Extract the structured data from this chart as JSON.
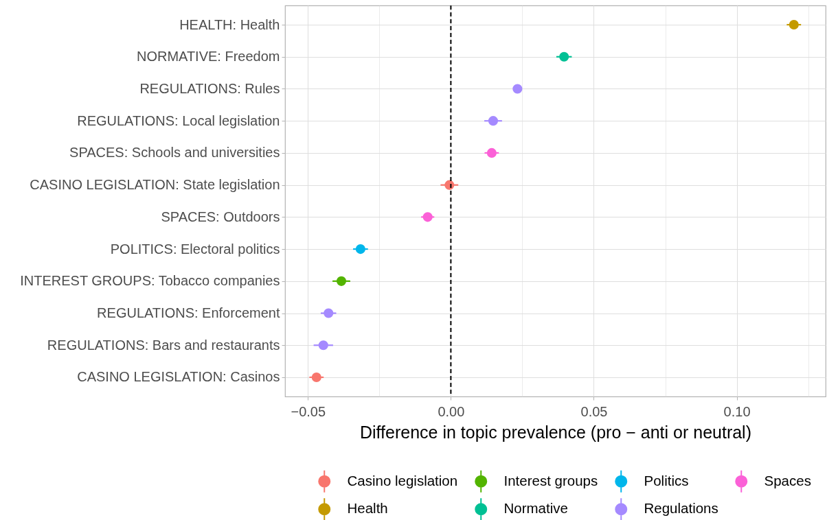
{
  "chart_data": {
    "type": "scatter",
    "orientation": "horizontal",
    "xlabel": "Difference in topic prevalence (pro − anti or neutral)",
    "categories": [
      "HEALTH: Health",
      "NORMATIVE: Freedom",
      "REGULATIONS: Rules",
      "REGULATIONS: Local legislation",
      "SPACES: Schools and universities",
      "CASINO LEGISLATION: State legislation",
      "SPACES: Outdoors",
      "POLITICS: Electoral politics",
      "INTEREST GROUPS: Tobacco companies",
      "REGULATIONS: Enforcement",
      "REGULATIONS: Bars and restaurants",
      "CASINO LEGISLATION: Casinos"
    ],
    "xlim": [
      -0.058,
      0.1311
    ],
    "xticks": [
      {
        "value": -0.05,
        "label": "−0.05"
      },
      {
        "value": -0.025,
        "label": null
      },
      {
        "value": 0,
        "label": "0.00"
      },
      {
        "value": 0.025,
        "label": null
      },
      {
        "value": 0.05,
        "label": "0.05"
      },
      {
        "value": 0.075,
        "label": null
      },
      {
        "value": 0.1,
        "label": "0.10"
      },
      {
        "value": 0.125,
        "label": null
      }
    ],
    "grid": true,
    "legend": "bottom",
    "marker": "circle",
    "ref_lines": [
      {
        "axis": "x",
        "value": 0,
        "color": "#000000",
        "line_style": "dashed"
      }
    ],
    "series": [
      {
        "name": "Casino legislation",
        "color": "#f8766d",
        "values": [
          null,
          null,
          null,
          null,
          null,
          -0.0005,
          null,
          null,
          null,
          null,
          null,
          -0.047
        ],
        "errors": [
          null,
          null,
          null,
          null,
          null,
          0.0031,
          null,
          null,
          null,
          null,
          null,
          0.0025
        ]
      },
      {
        "name": "Interest groups",
        "color": "#53b400",
        "values": [
          null,
          null,
          null,
          null,
          null,
          null,
          null,
          null,
          -0.0383,
          null,
          null,
          null
        ],
        "errors": [
          null,
          null,
          null,
          null,
          null,
          null,
          null,
          null,
          0.0031,
          null,
          null,
          null
        ]
      },
      {
        "name": "Politics",
        "color": "#00b6eb",
        "values": [
          null,
          null,
          null,
          null,
          null,
          null,
          null,
          -0.0316,
          null,
          null,
          null,
          null
        ],
        "errors": [
          null,
          null,
          null,
          null,
          null,
          null,
          null,
          0.0026,
          null,
          null,
          null,
          null
        ]
      },
      {
        "name": "Spaces",
        "color": "#fb61d7",
        "values": [
          null,
          null,
          null,
          null,
          0.0143,
          null,
          -0.0081,
          null,
          null,
          null,
          null,
          null
        ],
        "errors": [
          null,
          null,
          null,
          null,
          0.0025,
          null,
          0.0023,
          null,
          null,
          null,
          null,
          null
        ]
      },
      {
        "name": "Health",
        "color": "#c49a00",
        "values": [
          0.12,
          null,
          null,
          null,
          null,
          null,
          null,
          null,
          null,
          null,
          null,
          null
        ],
        "errors": [
          0.0025,
          null,
          null,
          null,
          null,
          null,
          null,
          null,
          null,
          null,
          null,
          null
        ]
      },
      {
        "name": "Normative",
        "color": "#00c094",
        "values": [
          null,
          0.0396,
          null,
          null,
          null,
          null,
          null,
          null,
          null,
          null,
          null,
          null
        ],
        "errors": [
          null,
          0.0027,
          null,
          null,
          null,
          null,
          null,
          null,
          null,
          null,
          null,
          null
        ]
      },
      {
        "name": "Regulations",
        "color": "#a58aff",
        "values": [
          null,
          null,
          0.0233,
          0.0148,
          null,
          null,
          null,
          null,
          null,
          -0.0428,
          -0.0446,
          null
        ],
        "errors": [
          null,
          null,
          null,
          0.0031,
          null,
          null,
          null,
          null,
          null,
          0.0027,
          0.0034,
          null
        ]
      }
    ]
  }
}
